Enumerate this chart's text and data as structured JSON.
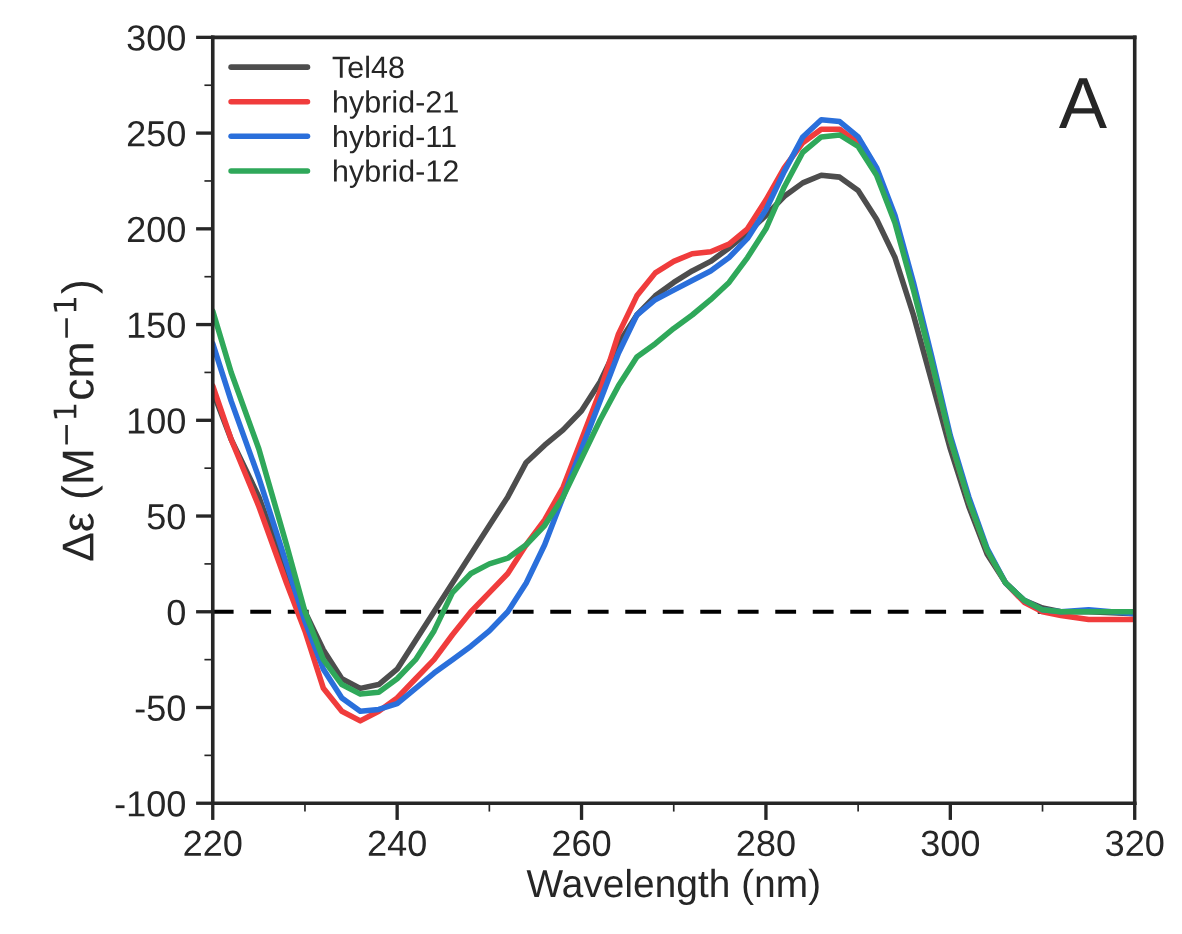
{
  "chart_data": {
    "type": "line",
    "xlabel": "Wavelength (nm)",
    "ylabel": "Δε (M$^{−1}$cm$^{−1}$)",
    "xlim": [
      220,
      320
    ],
    "xticks": [
      220,
      240,
      260,
      280,
      300,
      320
    ],
    "ylim": [
      -100,
      300
    ],
    "yticks": [
      -100,
      -50,
      0,
      50,
      100,
      150,
      200,
      250,
      300
    ],
    "legend": "top left",
    "grid": false,
    "marker": "none",
    "line_style": "solid",
    "annotations": [
      "A"
    ],
    "ref_lines": [
      {
        "axis": "y",
        "value": 0,
        "label": null,
        "color": "#000000",
        "line_style": "dashed"
      }
    ],
    "x": [
      220,
      222,
      225,
      228,
      230,
      232,
      234,
      236,
      238,
      240,
      242,
      244,
      246,
      248,
      250,
      252,
      254,
      256,
      258,
      260,
      262,
      264,
      266,
      268,
      270,
      272,
      274,
      276,
      278,
      280,
      282,
      284,
      286,
      288,
      290,
      292,
      294,
      296,
      298,
      300,
      302,
      304,
      306,
      308,
      310,
      312,
      315,
      320
    ],
    "series": [
      {
        "name": "Tel48",
        "color": "#4d4d4d",
        "values": [
          115,
          90,
          60,
          20,
          0,
          -20,
          -35,
          -40,
          -38,
          -30,
          -15,
          0,
          15,
          30,
          45,
          60,
          78,
          87,
          95,
          105,
          120,
          140,
          155,
          165,
          172,
          178,
          183,
          190,
          198,
          207,
          217,
          224,
          228,
          227,
          220,
          205,
          185,
          155,
          120,
          85,
          55,
          30,
          15,
          6,
          2,
          0,
          0,
          -1
        ]
      },
      {
        "name": "hybrid-21",
        "color": "#f03c3c",
        "values": [
          118,
          90,
          55,
          15,
          -10,
          -40,
          -52,
          -57,
          -52,
          -45,
          -35,
          -25,
          -12,
          0,
          10,
          20,
          35,
          48,
          65,
          90,
          115,
          145,
          165,
          177,
          183,
          187,
          188,
          192,
          200,
          215,
          232,
          245,
          252,
          252,
          245,
          230,
          205,
          170,
          130,
          90,
          58,
          32,
          15,
          5,
          0,
          -2,
          -4,
          -4
        ]
      },
      {
        "name": "hybrid-11",
        "color": "#2a6fdb",
        "values": [
          140,
          110,
          70,
          25,
          -5,
          -30,
          -45,
          -52,
          -51,
          -48,
          -40,
          -32,
          -25,
          -18,
          -10,
          0,
          15,
          35,
          60,
          85,
          110,
          135,
          155,
          163,
          168,
          173,
          178,
          185,
          195,
          210,
          230,
          248,
          257,
          256,
          248,
          232,
          207,
          172,
          133,
          92,
          60,
          33,
          15,
          6,
          1,
          0,
          1,
          -1
        ]
      },
      {
        "name": "hybrid-12",
        "color": "#2fa85a",
        "values": [
          157,
          125,
          85,
          35,
          0,
          -25,
          -38,
          -43,
          -42,
          -35,
          -25,
          -10,
          10,
          20,
          25,
          28,
          35,
          45,
          60,
          80,
          100,
          118,
          133,
          140,
          148,
          155,
          163,
          172,
          185,
          200,
          222,
          240,
          248,
          249,
          243,
          228,
          203,
          168,
          130,
          90,
          58,
          32,
          15,
          6,
          1,
          0,
          0,
          0
        ]
      }
    ]
  }
}
